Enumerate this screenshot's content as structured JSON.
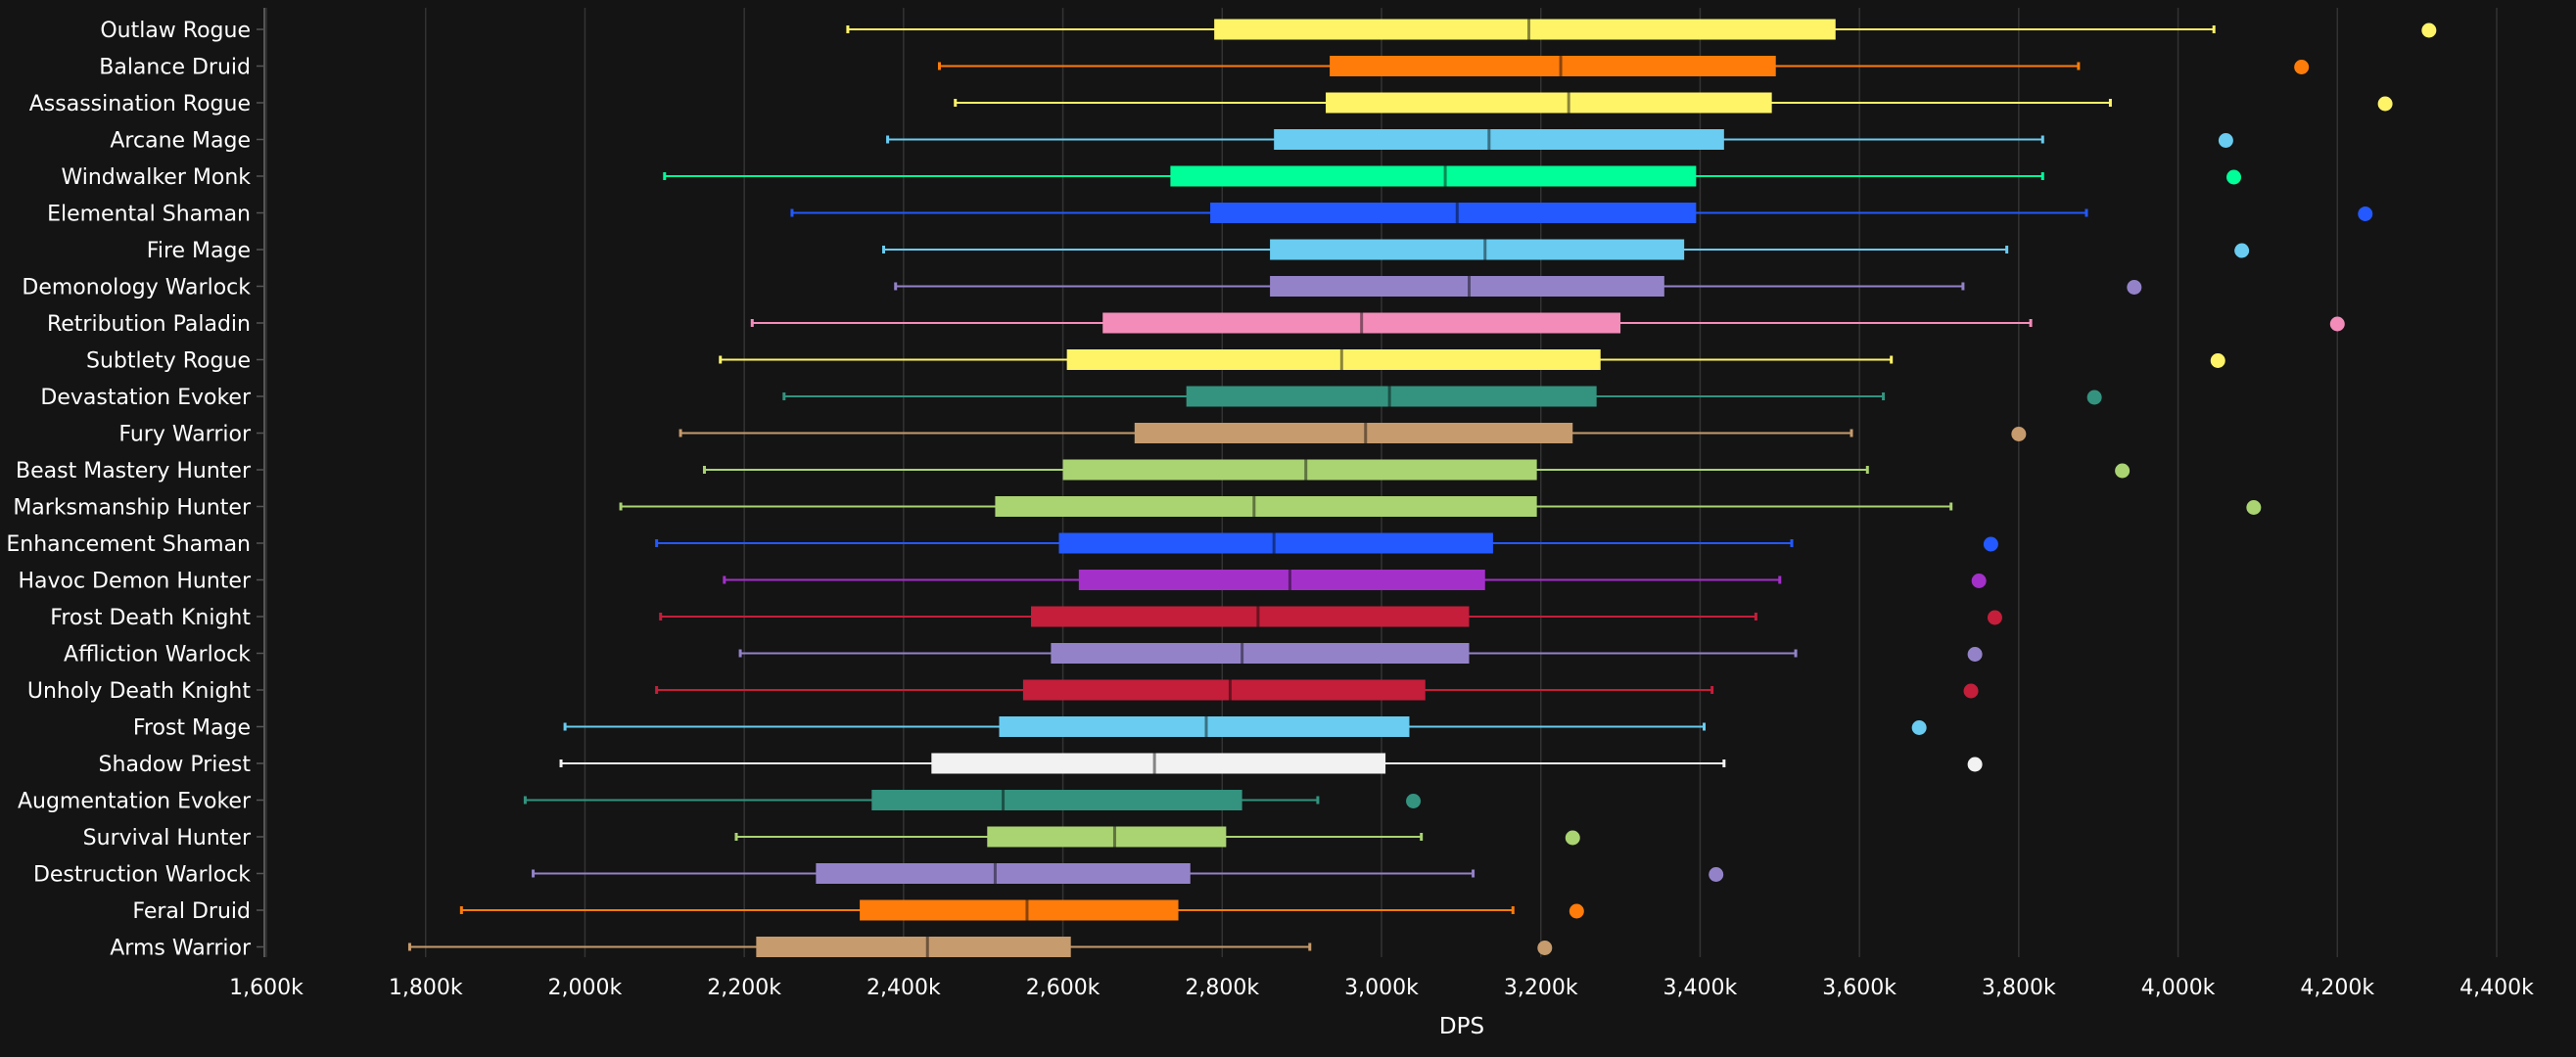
{
  "chart_data": {
    "type": "boxplot",
    "title": "",
    "xlabel": "DPS",
    "ylabel": "",
    "xlim": [
      1600,
      4400
    ],
    "x_unit": "k",
    "xticks": [
      1600,
      1800,
      2000,
      2200,
      2400,
      2600,
      2800,
      3000,
      3200,
      3400,
      3600,
      3800,
      4000,
      4200,
      4400
    ],
    "xtick_labels": [
      "1,600k",
      "1,800k",
      "2,000k",
      "2,200k",
      "2,400k",
      "2,600k",
      "2,800k",
      "3,000k",
      "3,200k",
      "3,400k",
      "3,600k",
      "3,800k",
      "4,000k",
      "4,200k",
      "4,400k"
    ],
    "grid": true,
    "legend": "none",
    "series": [
      {
        "name": "Outlaw Rogue",
        "color": "#FFF468",
        "min": 2330,
        "q1": 2790,
        "median": 3185,
        "q3": 3570,
        "max": 4045,
        "outlier": 4315
      },
      {
        "name": "Balance Druid",
        "color": "#FF7C0A",
        "min": 2445,
        "q1": 2935,
        "median": 3225,
        "q3": 3495,
        "max": 3875,
        "outlier": 4155
      },
      {
        "name": "Assassination Rogue",
        "color": "#FFF468",
        "min": 2465,
        "q1": 2930,
        "median": 3235,
        "q3": 3490,
        "max": 3915,
        "outlier": 4260
      },
      {
        "name": "Arcane Mage",
        "color": "#69CCF0",
        "min": 2380,
        "q1": 2865,
        "median": 3135,
        "q3": 3430,
        "max": 3830,
        "outlier": 4060
      },
      {
        "name": "Windwalker Monk",
        "color": "#00FF98",
        "min": 2100,
        "q1": 2735,
        "median": 3080,
        "q3": 3395,
        "max": 3830,
        "outlier": 4070
      },
      {
        "name": "Elemental Shaman",
        "color": "#2359FF",
        "min": 2260,
        "q1": 2785,
        "median": 3095,
        "q3": 3395,
        "max": 3885,
        "outlier": 4235
      },
      {
        "name": "Fire Mage",
        "color": "#69CCF0",
        "min": 2375,
        "q1": 2860,
        "median": 3130,
        "q3": 3380,
        "max": 3785,
        "outlier": 4080
      },
      {
        "name": "Demonology Warlock",
        "color": "#9482C9",
        "min": 2390,
        "q1": 2860,
        "median": 3110,
        "q3": 3355,
        "max": 3730,
        "outlier": 3945
      },
      {
        "name": "Retribution Paladin",
        "color": "#F48CBA",
        "min": 2210,
        "q1": 2650,
        "median": 2975,
        "q3": 3300,
        "max": 3815,
        "outlier": 4200
      },
      {
        "name": "Subtlety Rogue",
        "color": "#FFF468",
        "min": 2170,
        "q1": 2605,
        "median": 2950,
        "q3": 3275,
        "max": 3640,
        "outlier": 4050
      },
      {
        "name": "Devastation Evoker",
        "color": "#33937F",
        "min": 2250,
        "q1": 2755,
        "median": 3010,
        "q3": 3270,
        "max": 3630,
        "outlier": 3895
      },
      {
        "name": "Fury Warrior",
        "color": "#C69B6D",
        "min": 2120,
        "q1": 2690,
        "median": 2980,
        "q3": 3240,
        "max": 3590,
        "outlier": 3800
      },
      {
        "name": "Beast Mastery Hunter",
        "color": "#AAD372",
        "min": 2150,
        "q1": 2600,
        "median": 2905,
        "q3": 3195,
        "max": 3610,
        "outlier": 3930
      },
      {
        "name": "Marksmanship Hunter",
        "color": "#AAD372",
        "min": 2045,
        "q1": 2515,
        "median": 2840,
        "q3": 3195,
        "max": 3715,
        "outlier": 4095
      },
      {
        "name": "Enhancement Shaman",
        "color": "#2359FF",
        "min": 2090,
        "q1": 2595,
        "median": 2865,
        "q3": 3140,
        "max": 3515,
        "outlier": 3765
      },
      {
        "name": "Havoc Demon Hunter",
        "color": "#A330C9",
        "min": 2175,
        "q1": 2620,
        "median": 2885,
        "q3": 3130,
        "max": 3500,
        "outlier": 3750
      },
      {
        "name": "Frost Death Knight",
        "color": "#C41E3A",
        "min": 2095,
        "q1": 2560,
        "median": 2845,
        "q3": 3110,
        "max": 3470,
        "outlier": 3770
      },
      {
        "name": "Affliction Warlock",
        "color": "#9482C9",
        "min": 2195,
        "q1": 2585,
        "median": 2825,
        "q3": 3110,
        "max": 3520,
        "outlier": 3745
      },
      {
        "name": "Unholy Death Knight",
        "color": "#C41E3A",
        "min": 2090,
        "q1": 2550,
        "median": 2810,
        "q3": 3055,
        "max": 3415,
        "outlier": 3740
      },
      {
        "name": "Frost Mage",
        "color": "#69CCF0",
        "min": 1975,
        "q1": 2520,
        "median": 2780,
        "q3": 3035,
        "max": 3405,
        "outlier": 3675
      },
      {
        "name": "Shadow Priest",
        "color": "#F2F2F2",
        "min": 1970,
        "q1": 2435,
        "median": 2715,
        "q3": 3005,
        "max": 3430,
        "outlier": 3745
      },
      {
        "name": "Augmentation Evoker",
        "color": "#33937F",
        "min": 1925,
        "q1": 2360,
        "median": 2525,
        "q3": 2825,
        "max": 2920,
        "outlier": 3040
      },
      {
        "name": "Survival Hunter",
        "color": "#AAD372",
        "min": 2190,
        "q1": 2505,
        "median": 2665,
        "q3": 2805,
        "max": 3050,
        "outlier": 3240
      },
      {
        "name": "Destruction Warlock",
        "color": "#9482C9",
        "min": 1935,
        "q1": 2290,
        "median": 2515,
        "q3": 2760,
        "max": 3115,
        "outlier": 3420
      },
      {
        "name": "Feral Druid",
        "color": "#FF7C0A",
        "min": 1845,
        "q1": 2345,
        "median": 2555,
        "q3": 2745,
        "max": 3165,
        "outlier": 3245
      },
      {
        "name": "Arms Warrior",
        "color": "#C69B6D",
        "min": 1780,
        "q1": 2215,
        "median": 2430,
        "q3": 2610,
        "max": 2910,
        "outlier": 3205
      }
    ]
  },
  "colors": {
    "background": "#141414",
    "grid": "#333333",
    "axis": "#555555",
    "text": "#FFFFFF"
  }
}
